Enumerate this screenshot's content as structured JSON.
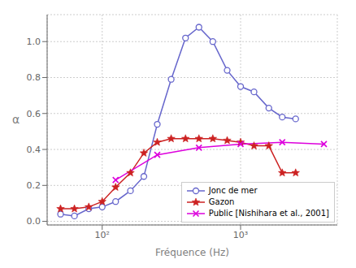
{
  "chart_data": {
    "type": "line",
    "xlabel": "Fréquence (Hz)",
    "ylabel": "α",
    "log": "x",
    "xlim": [
      40,
      5000
    ],
    "ylim": [
      -0.02,
      1.15
    ],
    "xticks": [
      {
        "value": 100,
        "label": "10²"
      },
      {
        "value": 1000,
        "label": "10³"
      }
    ],
    "yticks": [
      {
        "value": 0,
        "label": "0.0"
      },
      0.2,
      0.4,
      0.6,
      0.8,
      {
        "value": 1.0,
        "label": "1.0"
      }
    ],
    "grid": true,
    "legend": "lower right",
    "series": [
      {
        "name": "Jonc de mer",
        "color": "#6666cc",
        "marker": "circle",
        "x": [
          50,
          63,
          80,
          100,
          125,
          160,
          200,
          250,
          315,
          400,
          500,
          630,
          800,
          1000,
          1250,
          1600,
          2000,
          2500
        ],
        "values": [
          0.04,
          0.03,
          0.07,
          0.08,
          0.11,
          0.17,
          0.25,
          0.54,
          0.79,
          1.02,
          1.08,
          1.0,
          0.84,
          0.75,
          0.72,
          0.63,
          0.58,
          0.57
        ]
      },
      {
        "name": "Gazon",
        "color": "#cc2222",
        "marker": "star",
        "x": [
          50,
          63,
          80,
          100,
          125,
          160,
          200,
          250,
          315,
          400,
          500,
          630,
          800,
          1000,
          1250,
          1600,
          2000,
          2500
        ],
        "values": [
          0.07,
          0.07,
          0.08,
          0.11,
          0.19,
          0.27,
          0.38,
          0.44,
          0.46,
          0.46,
          0.46,
          0.46,
          0.45,
          0.44,
          0.42,
          0.42,
          0.27,
          0.27
        ]
      },
      {
        "name": "Public [Nishihara et al., 2001]",
        "color": "#dd00dd",
        "marker": "cross",
        "x": [
          125,
          250,
          500,
          1000,
          2000,
          4000
        ],
        "values": [
          0.23,
          0.37,
          0.41,
          0.43,
          0.44,
          0.43
        ]
      }
    ]
  }
}
